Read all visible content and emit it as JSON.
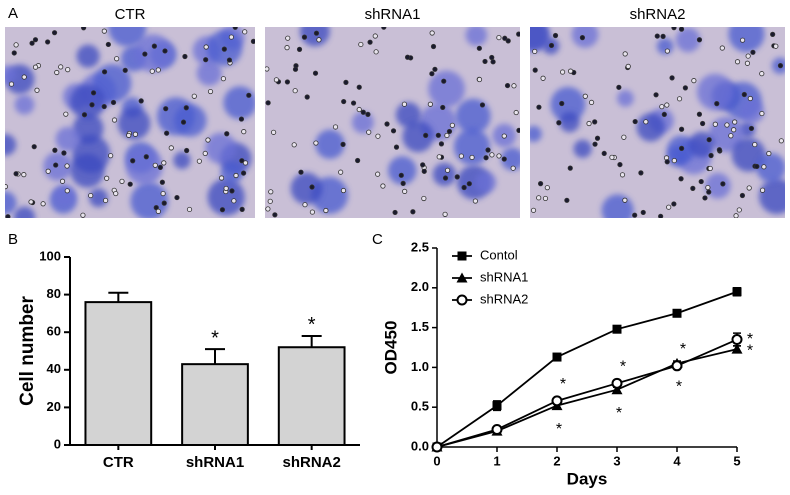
{
  "figure": {
    "panel_label": "A",
    "images": [
      "CTR",
      "shRNA1",
      "shRNA2"
    ]
  },
  "chart_data": [
    {
      "type": "bar",
      "panel_label": "B",
      "ylabel": "Cell number",
      "categories": [
        "CTR",
        "shRNA1",
        "shRNA2"
      ],
      "values": [
        76,
        43,
        52
      ],
      "errors": [
        5,
        8,
        6
      ],
      "annotations": [
        null,
        "*",
        "*"
      ],
      "color": "#d3d3d3",
      "ylim": [
        0,
        100
      ],
      "yticks": [
        0,
        20,
        40,
        60,
        80,
        100
      ]
    },
    {
      "type": "line",
      "panel_label": "C",
      "xlabel": "Days",
      "ylabel": "OD450",
      "x": [
        0,
        1,
        2,
        3,
        4,
        5
      ],
      "series": [
        {
          "name": "Contol",
          "color": "#000000",
          "marker": "square",
          "values": [
            0,
            0.52,
            1.13,
            1.48,
            1.68,
            1.95
          ],
          "errors": [
            0,
            0.06,
            0.02,
            0.02,
            0.02,
            0.05
          ],
          "annotations": [
            null,
            null,
            null,
            null,
            null,
            null
          ]
        },
        {
          "name": "shRNA1",
          "color": "#000000",
          "marker": "triangle",
          "values": [
            0,
            0.2,
            0.52,
            0.72,
            1.05,
            1.23
          ],
          "errors": [
            0,
            0.03,
            0.03,
            0.03,
            0.03,
            0.04
          ],
          "annotations": [
            null,
            null,
            "*",
            "*",
            "*",
            "*"
          ]
        },
        {
          "name": "shRNA2",
          "color": "#000000",
          "marker": "open-circle",
          "values": [
            0,
            0.22,
            0.58,
            0.8,
            1.02,
            1.35
          ],
          "errors": [
            0,
            0.02,
            0.03,
            0.03,
            0.03,
            0.08
          ],
          "annotations": [
            null,
            null,
            "*",
            "*",
            "*",
            "*"
          ]
        }
      ],
      "xlim": [
        0,
        5
      ],
      "xticks": [
        0,
        1,
        2,
        3,
        4,
        5
      ],
      "ylim": [
        0,
        2.5
      ],
      "yticks": [
        {
          "value": 0,
          "label": "0.0"
        },
        0.5,
        {
          "value": 1,
          "label": "1.0"
        },
        1.5,
        {
          "value": 2,
          "label": "2.0"
        },
        2.5
      ],
      "legend": "upper-left"
    }
  ]
}
